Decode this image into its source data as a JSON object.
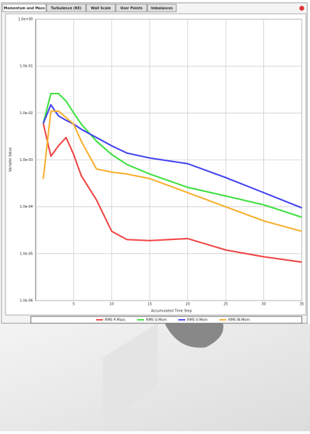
{
  "tabs": [
    "Momentum and Mass",
    "Turbulence (KE)",
    "Wall Scale",
    "User Points",
    "Imbalances"
  ],
  "chart_data": {
    "type": "line",
    "xlabel": "Accumulated Time Step",
    "ylabel": "Variable Value",
    "x": [
      1,
      2,
      3,
      4,
      5,
      6,
      8,
      10,
      12,
      15,
      20,
      25,
      30,
      35
    ],
    "series": [
      {
        "name": "RMS P-Mass",
        "color": "#f04545",
        "values": [
          0.006,
          0.0012,
          0.002,
          0.003,
          0.0013,
          0.00046,
          0.00014,
          3e-05,
          2e-05,
          1.9e-05,
          2.1e-05,
          1.2e-05,
          8.6e-06,
          6.6e-06
        ]
      },
      {
        "name": "RMS U-Mom",
        "color": "#40e040",
        "values": [
          0.006,
          0.026,
          0.026,
          0.018,
          0.01,
          0.0058,
          0.0025,
          0.0013,
          0.0008,
          0.0005,
          0.00026,
          0.00017,
          0.00011,
          6e-05
        ]
      },
      {
        "name": "RMS V-Mom",
        "color": "#4545f0",
        "values": [
          0.006,
          0.015,
          0.0087,
          0.007,
          0.0058,
          0.0045,
          0.003,
          0.002,
          0.0014,
          0.0011,
          0.00083,
          0.00042,
          0.0002,
          9.5e-05
        ]
      },
      {
        "name": "RMS W-Mom",
        "color": "#f8b030",
        "values": [
          0.00039,
          0.011,
          0.011,
          0.008,
          0.0058,
          0.0025,
          0.00064,
          0.00055,
          0.0005,
          0.0004,
          0.0002,
          0.0001,
          5e-05,
          3e-05
        ]
      }
    ],
    "xlim": [
      0,
      35
    ],
    "xticks": [
      5,
      10,
      15,
      20,
      25,
      30,
      35
    ],
    "ylim": [
      1e-06,
      1
    ],
    "yscale": "log",
    "yticks": [
      {
        "value": 1,
        "label": "1.0e+00"
      },
      {
        "value": 0.1,
        "label": "1.0e-01"
      },
      {
        "value": 0.01,
        "label": "1.0e-02"
      },
      {
        "value": 0.001,
        "label": "1.0e-03"
      },
      {
        "value": 0.0001,
        "label": "1.0e-04"
      },
      {
        "value": 1e-05,
        "label": "1.0e-05"
      },
      {
        "value": 1e-06,
        "label": "1.0e-06"
      }
    ],
    "grid": true,
    "legend": "bottom"
  }
}
